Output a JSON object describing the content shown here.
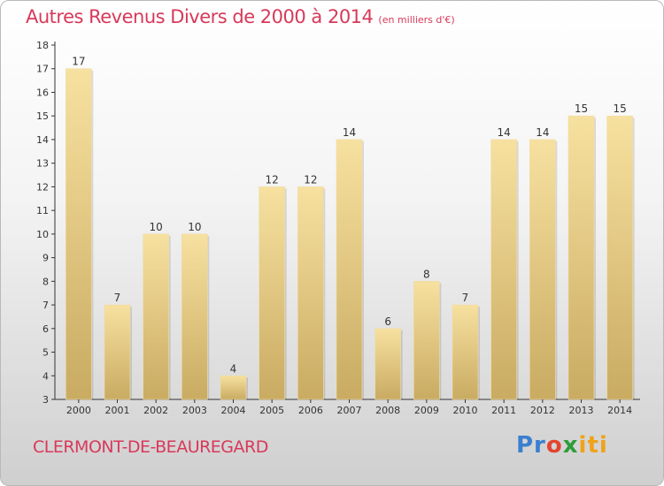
{
  "title": "Autres Revenus Divers de 2000 à 2014",
  "subtitle": "(en milliers d'€)",
  "commune": "CLERMONT-DE-BEAUREGARD",
  "logo": {
    "letters": [
      "Pr",
      "o",
      "x",
      "iti"
    ]
  },
  "colors": {
    "title": "#d8395a",
    "bar_top": "#f7e1a0",
    "bar_bottom": "#c9ab62",
    "axis": "#333333"
  },
  "chart_data": {
    "type": "bar",
    "title": "Autres Revenus Divers de 2000 à 2014",
    "subtitle": "(en milliers d'€)",
    "xlabel": "",
    "ylabel": "",
    "categories": [
      "2000",
      "2001",
      "2002",
      "2003",
      "2004",
      "2005",
      "2006",
      "2007",
      "2008",
      "2009",
      "2010",
      "2011",
      "2012",
      "2013",
      "2014"
    ],
    "values": [
      17,
      7,
      10,
      10,
      4,
      12,
      12,
      14,
      6,
      8,
      7,
      14,
      14,
      15,
      15
    ],
    "ylim": [
      3,
      18
    ],
    "yticks": [
      3,
      4,
      5,
      6,
      7,
      8,
      9,
      10,
      11,
      12,
      13,
      14,
      15,
      16,
      17,
      18
    ],
    "grid": false,
    "data_labels": true
  }
}
